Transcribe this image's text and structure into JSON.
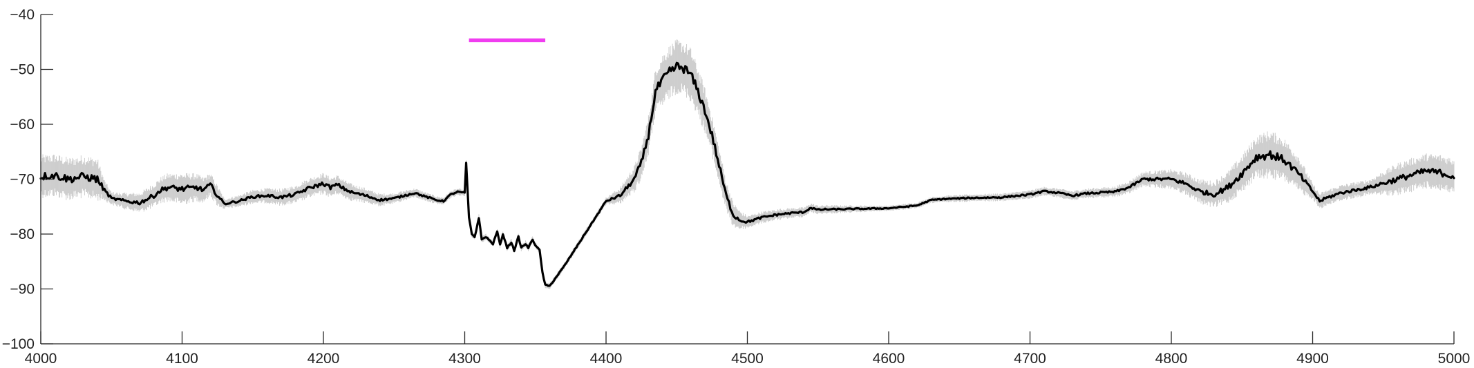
{
  "chart_data": {
    "type": "line",
    "title": "",
    "xlabel": "",
    "ylabel": "",
    "xlim": [
      4000,
      5000
    ],
    "ylim": [
      -100,
      -40
    ],
    "grid": false,
    "legend": "none",
    "x_ticks": [
      {
        "value": 4000,
        "label": "4000"
      },
      {
        "value": 4100,
        "label": "4100"
      },
      {
        "value": 4200,
        "label": "4200"
      },
      {
        "value": 4300,
        "label": "4300"
      },
      {
        "value": 4400,
        "label": "4400"
      },
      {
        "value": 4500,
        "label": "4500"
      },
      {
        "value": 4600,
        "label": "4600"
      },
      {
        "value": 4700,
        "label": "4700"
      },
      {
        "value": 4800,
        "label": "4800"
      },
      {
        "value": 4900,
        "label": "4900"
      },
      {
        "value": 5000,
        "label": "5000"
      }
    ],
    "y_ticks": [
      {
        "value": -40,
        "label": "−40"
      },
      {
        "value": -50,
        "label": "−50"
      },
      {
        "value": -60,
        "label": "−60"
      },
      {
        "value": -70,
        "label": "−70"
      },
      {
        "value": -80,
        "label": "−80"
      },
      {
        "value": -90,
        "label": "−90"
      },
      {
        "value": -100,
        "label": "−100"
      }
    ],
    "series": [
      {
        "role": "mean",
        "color": "#000000",
        "x": [
          4000,
          4010,
          4020,
          4030,
          4040,
          4045,
          4050,
          4060,
          4070,
          4080,
          4085,
          4090,
          4100,
          4110,
          4115,
          4120,
          4125,
          4130,
          4140,
          4150,
          4160,
          4170,
          4180,
          4190,
          4200,
          4205,
          4210,
          4215,
          4220,
          4230,
          4240,
          4250,
          4260,
          4265,
          4270,
          4280,
          4285,
          4290,
          4295,
          4300,
          4301,
          4302,
          4303,
          4305,
          4307,
          4308,
          4310,
          4312,
          4315,
          4320,
          4323,
          4325,
          4327,
          4330,
          4333,
          4335,
          4338,
          4340,
          4343,
          4345,
          4348,
          4350,
          4353,
          4355,
          4357,
          4360,
          4370,
          4380,
          4390,
          4400,
          4410,
          4420,
          4425,
          4430,
          4435,
          4440,
          4445,
          4450,
          4455,
          4460,
          4465,
          4470,
          4475,
          4480,
          4485,
          4490,
          4495,
          4500,
          4510,
          4520,
          4530,
          4540,
          4545,
          4550,
          4555,
          4560,
          4580,
          4600,
          4620,
          4630,
          4640,
          4660,
          4680,
          4700,
          4710,
          4720,
          4730,
          4740,
          4760,
          4770,
          4780,
          4800,
          4810,
          4820,
          4830,
          4840,
          4850,
          4860,
          4870,
          4880,
          4890,
          4900,
          4905,
          4910,
          4920,
          4940,
          4960,
          4980,
          4990,
          5000
        ],
        "y": [
          -69.5,
          -69.3,
          -70,
          -69.5,
          -70,
          -72,
          -73.5,
          -74,
          -74.3,
          -73,
          -72,
          -71.5,
          -71.8,
          -71.5,
          -72,
          -71,
          -73,
          -74.5,
          -74,
          -73.2,
          -73,
          -73.3,
          -72.8,
          -71.6,
          -70.8,
          -71.5,
          -71,
          -71.8,
          -72.4,
          -73,
          -73.8,
          -73.5,
          -72.8,
          -72.5,
          -73,
          -73.8,
          -74,
          -72.8,
          -72.3,
          -72.5,
          -67,
          -72,
          -77,
          -80,
          -80.5,
          -79.5,
          -77,
          -81,
          -80.5,
          -81.8,
          -79.5,
          -82,
          -80,
          -82.5,
          -81.5,
          -83,
          -80.5,
          -82.5,
          -81.8,
          -82.5,
          -81,
          -82,
          -83,
          -87,
          -89.3,
          -89.5,
          -86,
          -82,
          -78,
          -74,
          -73,
          -70,
          -67,
          -62,
          -54,
          -52,
          -50.5,
          -49.5,
          -49.8,
          -51,
          -54,
          -57.5,
          -62,
          -67.5,
          -73,
          -76.5,
          -77.5,
          -77.8,
          -77,
          -76.5,
          -76.2,
          -76,
          -75.2,
          -75.6,
          -75.5,
          -75.5,
          -75.4,
          -75.3,
          -74.8,
          -73.8,
          -73.6,
          -73.4,
          -73.3,
          -72.8,
          -72.2,
          -72.5,
          -73,
          -72.6,
          -72.3,
          -71.5,
          -70,
          -70,
          -70.8,
          -72.2,
          -72.8,
          -71.5,
          -69,
          -66,
          -65.5,
          -66.5,
          -69,
          -72.2,
          -74,
          -73.4,
          -72.5,
          -71.5,
          -70,
          -68.5,
          -68.8,
          -69.5
        ]
      },
      {
        "role": "noise-amplitude",
        "color": "#c8c8c8",
        "x": [
          4000,
          4040,
          4045,
          4050,
          4100,
          4125,
          4130,
          4200,
          4250,
          4300,
          4400,
          4420,
          4440,
          4460,
          4480,
          4500,
          4600,
          4760,
          4830,
          4850,
          4870,
          4890,
          4900,
          4940,
          4960,
          5000
        ],
        "y": [
          4,
          4,
          2,
          1.2,
          3,
          2,
          1,
          2,
          1,
          0.6,
          0.7,
          2.5,
          5,
          5,
          3.5,
          1.2,
          0.5,
          1,
          2.5,
          3.5,
          4.5,
          3.5,
          1.5,
          1.5,
          3,
          3.5
        ]
      }
    ],
    "annotations": [
      {
        "type": "bar",
        "color": "#f03df0",
        "x_start": 4303,
        "x_end": 4357,
        "y": -44.7
      }
    ]
  }
}
